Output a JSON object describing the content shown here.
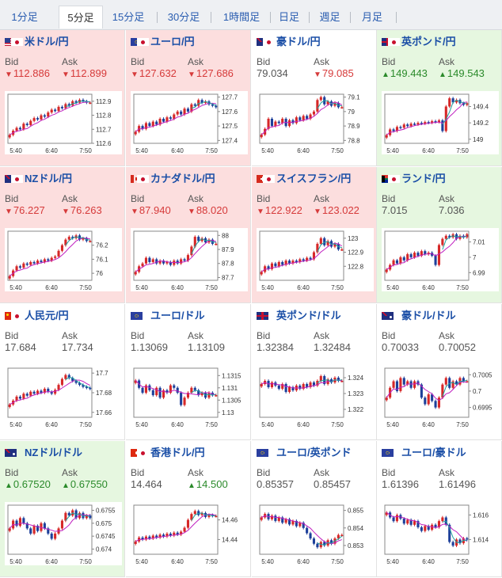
{
  "tabs": [
    {
      "label": "1分足",
      "active": false
    },
    {
      "label": "5分足",
      "active": true
    },
    {
      "label": "15分足",
      "active": false
    },
    {
      "label": "30分足",
      "active": false
    },
    {
      "label": "1時間足",
      "active": false
    },
    {
      "label": "日足",
      "active": false
    },
    {
      "label": "週足",
      "active": false
    },
    {
      "label": "月足",
      "active": false
    }
  ],
  "bid_label": "Bid",
  "ask_label": "Ask",
  "colors": {
    "up_candle": "#d62828",
    "down_candle": "#1d3f9a",
    "ma_line": "#c020c0",
    "ma2_line": "#20a0a0",
    "down_bg": "#fcdede",
    "up_bg": "#e6f7e0"
  },
  "pairs": [
    {
      "name": "米ドル/円",
      "flag": "us",
      "trend": "down",
      "bid": "112.886",
      "ask": "112.899",
      "bid_dir": "down",
      "ask_dir": "down",
      "chart_data": {
        "type": "candlestick",
        "x_ticks": [
          "5:40",
          "6:40",
          "7:50"
        ],
        "y_ticks": [
          "112.9",
          "112.8",
          "112.7",
          "112.6"
        ],
        "ylim": [
          112.6,
          112.95
        ],
        "close": [
          112.66,
          112.69,
          112.71,
          112.7,
          112.74,
          112.73,
          112.76,
          112.78,
          112.77,
          112.8,
          112.79,
          112.82,
          112.84,
          112.83,
          112.86,
          112.85,
          112.88,
          112.87,
          112.9,
          112.89,
          112.91,
          112.9,
          112.89,
          112.89
        ]
      }
    },
    {
      "name": "ユーロ/円",
      "flag": "eu",
      "trend": "down",
      "bid": "127.632",
      "ask": "127.686",
      "bid_dir": "down",
      "ask_dir": "down",
      "chart_data": {
        "type": "candlestick",
        "x_ticks": [
          "5:40",
          "6:40",
          "7:50"
        ],
        "y_ticks": [
          "127.7",
          "127.6",
          "127.5",
          "127.4"
        ],
        "ylim": [
          127.38,
          127.72
        ],
        "close": [
          127.46,
          127.5,
          127.48,
          127.52,
          127.5,
          127.53,
          127.51,
          127.55,
          127.53,
          127.56,
          127.55,
          127.58,
          127.6,
          127.58,
          127.62,
          127.6,
          127.65,
          127.64,
          127.68,
          127.66,
          127.67,
          127.65,
          127.64,
          127.63
        ]
      }
    },
    {
      "name": "豪ドル/円",
      "flag": "au",
      "trend": "flat",
      "bid": "79.034",
      "ask": "79.085",
      "bid_dir": "none",
      "ask_dir": "down",
      "chart_data": {
        "type": "candlestick",
        "x_ticks": [
          "5:40",
          "6:40",
          "7:50"
        ],
        "y_ticks": [
          "79.1",
          "79",
          "78.9",
          "78.8"
        ],
        "ylim": [
          78.78,
          79.12
        ],
        "close": [
          78.84,
          78.88,
          78.95,
          78.9,
          78.93,
          78.92,
          78.95,
          78.9,
          78.94,
          78.92,
          78.96,
          78.94,
          78.97,
          78.95,
          78.98,
          79.0,
          79.08,
          79.1,
          79.05,
          79.07,
          79.04,
          79.06,
          79.03,
          79.03
        ]
      }
    },
    {
      "name": "英ポンド/円",
      "flag": "gb",
      "trend": "up",
      "bid": "149.443",
      "ask": "149.543",
      "bid_dir": "up",
      "ask_dir": "up",
      "chart_data": {
        "type": "candlestick",
        "x_ticks": [
          "5:40",
          "6:40",
          "7:50"
        ],
        "y_ticks": [
          "149.4",
          "149.2",
          "149"
        ],
        "ylim": [
          148.95,
          149.55
        ],
        "close": [
          149.05,
          149.12,
          149.1,
          149.15,
          149.14,
          149.18,
          149.16,
          149.19,
          149.18,
          149.2,
          149.19,
          149.21,
          149.2,
          149.22,
          149.21,
          149.23,
          149.1,
          149.4,
          149.5,
          149.45,
          149.48,
          149.44,
          149.42,
          149.44
        ]
      }
    },
    {
      "name": "NZドル/円",
      "flag": "nz",
      "trend": "down",
      "bid": "76.227",
      "ask": "76.263",
      "bid_dir": "down",
      "ask_dir": "down",
      "chart_data": {
        "type": "candlestick",
        "x_ticks": [
          "5:40",
          "6:40",
          "7:50"
        ],
        "y_ticks": [
          "76.2",
          "76.1",
          "76"
        ],
        "ylim": [
          75.95,
          76.3
        ],
        "close": [
          75.98,
          76.02,
          76.05,
          76.04,
          76.07,
          76.06,
          76.08,
          76.07,
          76.09,
          76.08,
          76.1,
          76.09,
          76.11,
          76.12,
          76.16,
          76.2,
          76.24,
          76.26,
          76.25,
          76.27,
          76.24,
          76.25,
          76.23,
          76.23
        ]
      }
    },
    {
      "name": "カナダドル/円",
      "flag": "ca",
      "trend": "down",
      "bid": "87.940",
      "ask": "88.020",
      "bid_dir": "down",
      "ask_dir": "down",
      "chart_data": {
        "type": "candlestick",
        "x_ticks": [
          "5:40",
          "6:40",
          "7:50"
        ],
        "y_ticks": [
          "88",
          "87.9",
          "87.8",
          "87.7"
        ],
        "ylim": [
          87.68,
          88.03
        ],
        "close": [
          87.74,
          87.78,
          87.8,
          87.84,
          87.81,
          87.83,
          87.8,
          87.82,
          87.8,
          87.81,
          87.79,
          87.82,
          87.8,
          87.83,
          87.82,
          87.86,
          87.92,
          87.99,
          87.96,
          87.98,
          87.95,
          87.97,
          87.94,
          87.94
        ]
      }
    },
    {
      "name": "スイスフラン/円",
      "flag": "ch",
      "trend": "down",
      "bid": "122.922",
      "ask": "123.022",
      "bid_dir": "down",
      "ask_dir": "down",
      "chart_data": {
        "type": "candlestick",
        "x_ticks": [
          "5:40",
          "6:40",
          "7:50"
        ],
        "y_ticks": [
          "123",
          "122.9",
          "122.8"
        ],
        "ylim": [
          122.7,
          123.05
        ],
        "close": [
          122.76,
          122.8,
          122.78,
          122.82,
          122.8,
          122.83,
          122.81,
          122.84,
          122.82,
          122.84,
          122.83,
          122.85,
          122.84,
          122.86,
          122.85,
          122.9,
          122.96,
          123.0,
          122.95,
          122.98,
          122.94,
          122.96,
          122.92,
          122.92
        ]
      }
    },
    {
      "name": "ランド/円",
      "flag": "za",
      "trend": "up",
      "bid": "7.015",
      "ask": "7.036",
      "bid_dir": "none",
      "ask_dir": "none",
      "chart_data": {
        "type": "candlestick",
        "x_ticks": [
          "5:40",
          "6:40",
          "7:50"
        ],
        "y_ticks": [
          "7.01",
          "7",
          "6.99"
        ],
        "ylim": [
          6.985,
          7.017
        ],
        "close": [
          6.992,
          6.995,
          6.998,
          6.996,
          7.0,
          6.998,
          7.002,
          7.0,
          7.003,
          7.001,
          7.004,
          7.002,
          7.003,
          7.001,
          6.995,
          7.008,
          7.012,
          7.014,
          7.013,
          7.015,
          7.012,
          7.014,
          7.013,
          7.015
        ]
      }
    },
    {
      "name": "人民元/円",
      "flag": "cn",
      "trend": "flat",
      "bid": "17.684",
      "ask": "17.734",
      "bid_dir": "none",
      "ask_dir": "none",
      "chart_data": {
        "type": "candlestick",
        "x_ticks": [
          "5:40",
          "6:40",
          "7:50"
        ],
        "y_ticks": [
          "17.7",
          "17.68",
          "17.66"
        ],
        "ylim": [
          17.655,
          17.705
        ],
        "close": [
          17.668,
          17.672,
          17.676,
          17.674,
          17.679,
          17.677,
          17.681,
          17.679,
          17.682,
          17.68,
          17.684,
          17.681,
          17.679,
          17.683,
          17.688,
          17.694,
          17.698,
          17.695,
          17.692,
          17.69,
          17.688,
          17.686,
          17.685,
          17.684
        ]
      }
    },
    {
      "name": "ユーロ/ドル",
      "flag": "eu",
      "trend": "flat",
      "bid": "1.13069",
      "ask": "1.13109",
      "bid_dir": "none",
      "ask_dir": "none",
      "chart_data": {
        "type": "candlestick",
        "x_ticks": [
          "5:40",
          "6:40",
          "7:50"
        ],
        "y_ticks": [
          "1.1315",
          "1.131",
          "1.1305",
          "1.13"
        ],
        "ylim": [
          1.1298,
          1.1318
        ],
        "close": [
          1.1313,
          1.131,
          1.1308,
          1.1311,
          1.1309,
          1.1307,
          1.131,
          1.1306,
          1.1309,
          1.1308,
          1.1311,
          1.131,
          1.1308,
          1.1303,
          1.1306,
          1.1308,
          1.131,
          1.1309,
          1.1307,
          1.1308,
          1.1306,
          1.1308,
          1.1307,
          1.1307
        ]
      }
    },
    {
      "name": "英ポンド/ドル",
      "flag": "gb",
      "trend": "flat",
      "bid": "1.32384",
      "ask": "1.32484",
      "bid_dir": "none",
      "ask_dir": "none",
      "chart_data": {
        "type": "candlestick",
        "x_ticks": [
          "5:40",
          "6:40",
          "7:50"
        ],
        "y_ticks": [
          "1.324",
          "1.323",
          "1.322"
        ],
        "ylim": [
          1.3215,
          1.3246
        ],
        "close": [
          1.3236,
          1.3238,
          1.3234,
          1.3237,
          1.3235,
          1.3233,
          1.3236,
          1.3231,
          1.3234,
          1.3232,
          1.3235,
          1.3233,
          1.3236,
          1.3234,
          1.3237,
          1.3235,
          1.3238,
          1.3241,
          1.3236,
          1.3239,
          1.3237,
          1.324,
          1.3238,
          1.3238
        ]
      }
    },
    {
      "name": "豪ドル/ドル",
      "flag": "au",
      "trend": "flat",
      "bid": "0.70033",
      "ask": "0.70052",
      "bid_dir": "none",
      "ask_dir": "none",
      "chart_data": {
        "type": "candlestick",
        "x_ticks": [
          "5:40",
          "6:40",
          "7:50"
        ],
        "y_ticks": [
          "0.7005",
          "0.7",
          "0.6995"
        ],
        "ylim": [
          0.6992,
          0.7007
        ],
        "close": [
          0.6998,
          0.7001,
          0.7003,
          0.7,
          0.7004,
          0.7002,
          0.7003,
          0.7001,
          0.7003,
          0.7002,
          0.6998,
          0.6996,
          0.6999,
          0.6997,
          0.6995,
          0.6998,
          0.7002,
          0.7004,
          0.7001,
          0.7003,
          0.7002,
          0.7004,
          0.7003,
          0.7003
        ]
      }
    },
    {
      "name": "NZドル/ドル",
      "flag": "nz",
      "trend": "up",
      "bid": "0.67520",
      "ask": "0.67550",
      "bid_dir": "up",
      "ask_dir": "up",
      "chart_data": {
        "type": "candlestick",
        "x_ticks": [
          "5:40",
          "6:40",
          "7:50"
        ],
        "y_ticks": [
          "0.6755",
          "0.675",
          "0.6745",
          "0.674"
        ],
        "ylim": [
          0.6738,
          0.6757
        ],
        "close": [
          0.6748,
          0.6751,
          0.6749,
          0.6752,
          0.675,
          0.6748,
          0.6746,
          0.6749,
          0.6747,
          0.675,
          0.6748,
          0.6746,
          0.6744,
          0.6746,
          0.6748,
          0.6751,
          0.6754,
          0.6753,
          0.6755,
          0.6752,
          0.6754,
          0.6752,
          0.6753,
          0.6752
        ]
      }
    },
    {
      "name": "香港ドル/円",
      "flag": "hk",
      "trend": "flat",
      "bid": "14.464",
      "ask": "14.500",
      "bid_dir": "none",
      "ask_dir": "up",
      "chart_data": {
        "type": "candlestick",
        "x_ticks": [
          "5:40",
          "6:40",
          "7:50"
        ],
        "y_ticks": [
          "14.46",
          "14.44"
        ],
        "ylim": [
          14.425,
          14.475
        ],
        "close": [
          14.438,
          14.442,
          14.44,
          14.443,
          14.441,
          14.444,
          14.442,
          14.445,
          14.443,
          14.446,
          14.444,
          14.447,
          14.445,
          14.448,
          14.452,
          14.46,
          14.466,
          14.469,
          14.465,
          14.467,
          14.463,
          14.465,
          14.464,
          14.464
        ]
      }
    },
    {
      "name": "ユーロ/英ポンド",
      "flag": "eu",
      "trend": "flat",
      "bid": "0.85357",
      "ask": "0.85457",
      "bid_dir": "none",
      "ask_dir": "none",
      "chart_data": {
        "type": "candlestick",
        "x_ticks": [
          "5:40",
          "6:40",
          "7:50"
        ],
        "y_ticks": [
          "0.855",
          "0.854",
          "0.853"
        ],
        "ylim": [
          0.8525,
          0.8553
        ],
        "close": [
          0.8546,
          0.8548,
          0.8545,
          0.8547,
          0.8544,
          0.8546,
          0.8543,
          0.8545,
          0.8542,
          0.8544,
          0.8541,
          0.8543,
          0.854,
          0.8537,
          0.8534,
          0.8531,
          0.8529,
          0.8532,
          0.853,
          0.8533,
          0.8531,
          0.8534,
          0.8536,
          0.8536
        ]
      }
    },
    {
      "name": "ユーロ/豪ドル",
      "flag": "eu",
      "trend": "flat",
      "bid": "1.61396",
      "ask": "1.61496",
      "bid_dir": "none",
      "ask_dir": "none",
      "chart_data": {
        "type": "candlestick",
        "x_ticks": [
          "5:40",
          "6:40",
          "7:50"
        ],
        "y_ticks": [
          "1.616",
          "1.614"
        ],
        "ylim": [
          1.6128,
          1.6168
        ],
        "close": [
          1.6162,
          1.6158,
          1.6155,
          1.616,
          1.6157,
          1.6153,
          1.6156,
          1.6152,
          1.6155,
          1.615,
          1.6147,
          1.6151,
          1.6148,
          1.6152,
          1.615,
          1.6155,
          1.6158,
          1.6152,
          1.6138,
          1.6135,
          1.614,
          1.6137,
          1.6141,
          1.614
        ]
      }
    }
  ]
}
